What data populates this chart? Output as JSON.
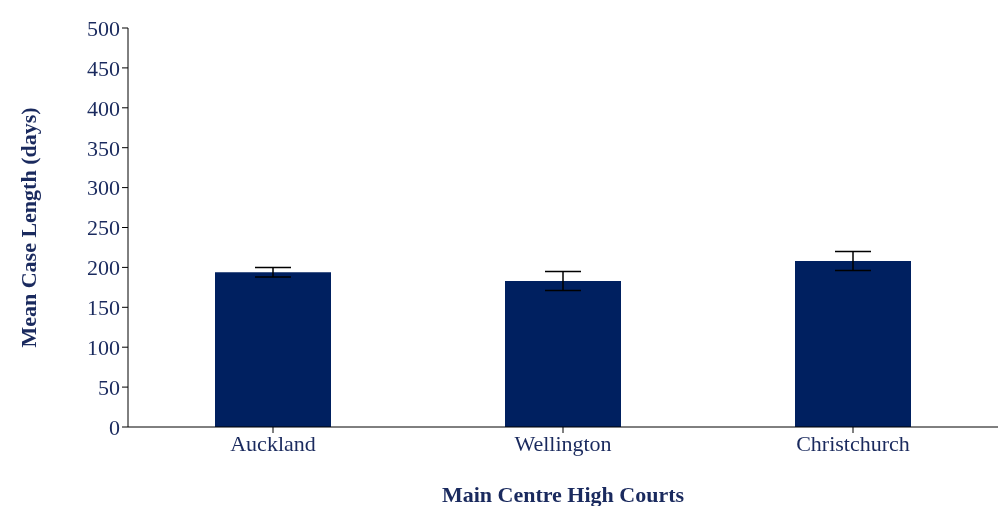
{
  "chart_data": {
    "type": "bar",
    "xlabel": "Main Centre High Courts",
    "ylabel": "Mean Case Length (days)",
    "categories": [
      "Auckland",
      "Wellington",
      "Christchurch"
    ],
    "values": [
      194,
      183,
      208
    ],
    "errors": [
      6,
      12,
      12
    ],
    "color": "#002060",
    "ylim": [
      0,
      500
    ],
    "yticks": [
      0,
      50,
      100,
      150,
      200,
      250,
      300,
      350,
      400,
      450,
      500
    ],
    "grid": false,
    "legend": false
  }
}
